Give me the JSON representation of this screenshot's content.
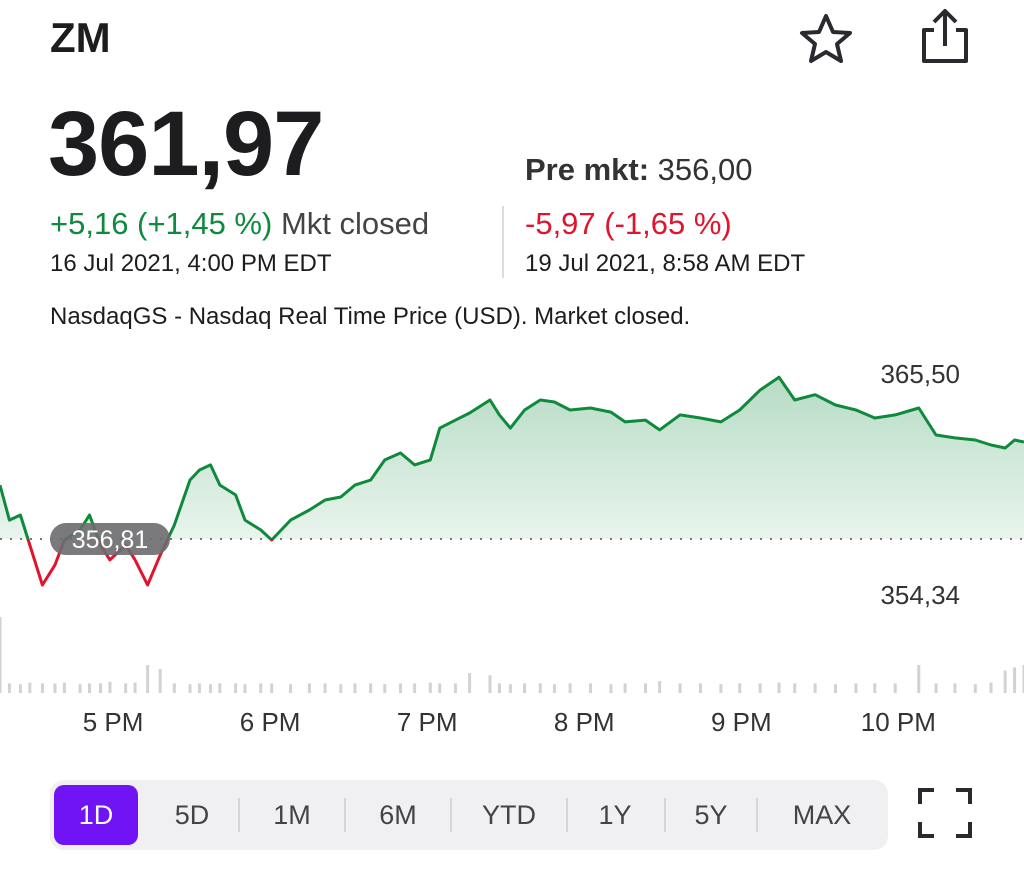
{
  "header": {
    "ticker": "ZM",
    "price": "361,97",
    "change": "+5,16 (+1,45 %)",
    "status": "Mkt closed",
    "time": "16 Jul 2021, 4:00 PM EDT",
    "pre_label": "Pre mkt:",
    "pre_price": "356,00",
    "pre_change": "-5,97 (-1,65 %)",
    "pre_time": "19 Jul 2021, 8:58 AM EDT",
    "note": "NasdaqGS - Nasdaq Real Time Price (USD). Market closed."
  },
  "chart_data": {
    "type": "line",
    "x": [
      16.28,
      16.34,
      16.41,
      16.47,
      16.55,
      16.63,
      16.69,
      16.79,
      16.85,
      16.92,
      16.98,
      17.08,
      17.14,
      17.22,
      17.3,
      17.39,
      17.49,
      17.55,
      17.62,
      17.68,
      17.78,
      17.84,
      17.94,
      18.01,
      18.13,
      18.25,
      18.35,
      18.45,
      18.54,
      18.64,
      18.73,
      18.83,
      18.92,
      19.02,
      19.08,
      19.18,
      19.27,
      19.4,
      19.46,
      19.53,
      19.62,
      19.72,
      19.81,
      19.91,
      20.04,
      20.17,
      20.26,
      20.39,
      20.48,
      20.61,
      20.74,
      20.87,
      20.99,
      21.12,
      21.24,
      21.34,
      21.47,
      21.6,
      21.73,
      21.85,
      21.98,
      22.13,
      22.24,
      22.36,
      22.49,
      22.59,
      22.68,
      22.74,
      22.8
    ],
    "series": [
      {
        "name": "price",
        "color": "#0f8a3c",
        "below_color": "#e0142e",
        "values": [
          359.71,
          357.83,
          358.1,
          356.49,
          354.34,
          355.42,
          356.76,
          357.3,
          358.1,
          356.49,
          355.69,
          356.49,
          355.69,
          354.34,
          355.95,
          357.56,
          359.98,
          360.52,
          360.79,
          359.71,
          359.18,
          357.83,
          357.3,
          356.76,
          357.83,
          358.37,
          358.91,
          359.07,
          359.71,
          359.98,
          361.06,
          361.43,
          360.79,
          361.06,
          362.77,
          363.2,
          363.58,
          364.28,
          363.48,
          362.77,
          363.74,
          364.28,
          364.17,
          363.74,
          363.85,
          363.63,
          363.1,
          363.2,
          362.67,
          363.48,
          363.31,
          363.1,
          363.74,
          364.81,
          365.5,
          364.28,
          364.56,
          364.01,
          363.74,
          363.31,
          363.48,
          363.85,
          362.4,
          362.24,
          362.13,
          361.86,
          361.7,
          362.13,
          362.02
        ]
      },
      {
        "name": "volume",
        "color": "#d2d2d4",
        "axis": "y2",
        "values": [
          95,
          12,
          11,
          13,
          12,
          12,
          13,
          11,
          12,
          12,
          14,
          12,
          13,
          35,
          30,
          12,
          11,
          12,
          11,
          12,
          12,
          11,
          12,
          12,
          11,
          12,
          12,
          11,
          12,
          12,
          11,
          12,
          12,
          13,
          12,
          12,
          25,
          22,
          12,
          11,
          12,
          12,
          11,
          12,
          12,
          11,
          12,
          12,
          15,
          12,
          12,
          11,
          12,
          12,
          13,
          12,
          12,
          11,
          12,
          12,
          12,
          35,
          12,
          12,
          11,
          13,
          28,
          32,
          35
        ]
      }
    ],
    "xlim": [
      16.28,
      22.8
    ],
    "xticks": [
      {
        "value": 17,
        "label": "5 PM"
      },
      {
        "value": 18,
        "label": "6 PM"
      },
      {
        "value": 19,
        "label": "7 PM"
      },
      {
        "value": 20,
        "label": "8 PM"
      },
      {
        "value": 21,
        "label": "9 PM"
      },
      {
        "value": 22,
        "label": "10 PM"
      }
    ],
    "ylim": [
      353.0,
      367.5
    ],
    "yticks": [
      {
        "value": 365.5,
        "label": "365,50"
      },
      {
        "value": 354.34,
        "label": "354,34"
      }
    ],
    "y2lim": [
      0,
      100
    ],
    "reference": {
      "value": 356.81,
      "label": "356,81"
    }
  },
  "ranges": {
    "items": [
      "1D",
      "5D",
      "1M",
      "6M",
      "YTD",
      "1Y",
      "5Y",
      "MAX"
    ],
    "selected": 0
  }
}
